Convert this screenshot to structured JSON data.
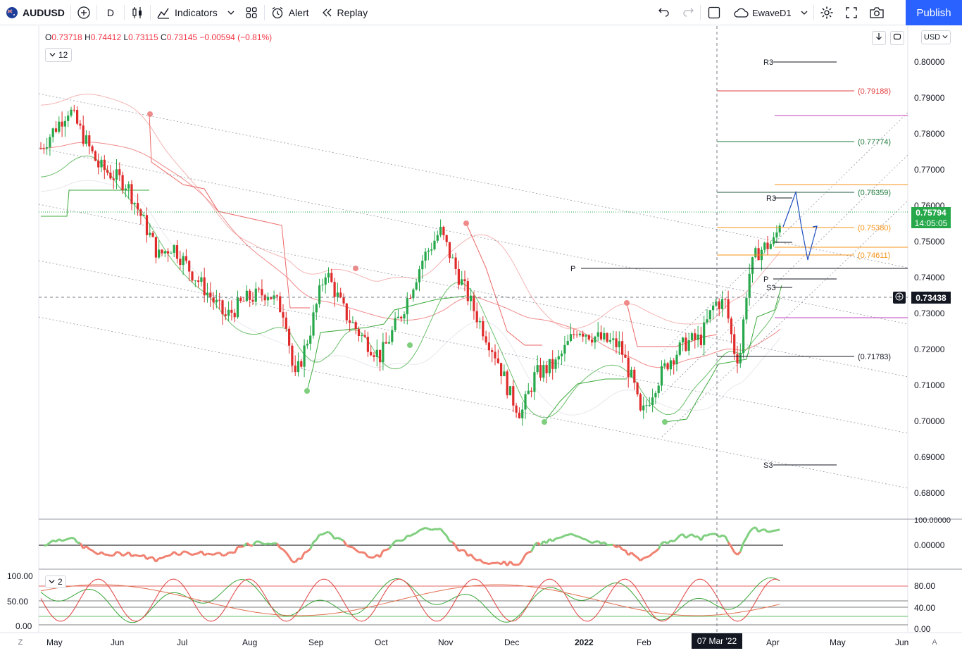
{
  "toolbar": {
    "symbol": "AUDUSD",
    "interval": "D",
    "indicators_label": "Indicators",
    "alert_label": "Alert",
    "replay_label": "Replay",
    "layout_name": "EwaveD1",
    "publish_label": "Publish"
  },
  "legend": {
    "o_key": "O",
    "o_val": "0.73718",
    "h_key": "H",
    "h_val": "0.74412",
    "l_key": "L",
    "l_val": "0.73115",
    "c_key": "C",
    "c_val": "0.73145",
    "change": "−0.00594 (−0.81%)",
    "hidden_count": "12",
    "pane3_count": "2"
  },
  "currency": "USD",
  "price_axis": {
    "ticks": [
      "0.80000",
      "0.79000",
      "0.78000",
      "0.77000",
      "0.76000",
      "0.75000",
      "0.74000",
      "0.73000",
      "0.72000",
      "0.71000",
      "0.70000",
      "0.69000",
      "0.68000"
    ],
    "last_price": "0.75794",
    "countdown": "14:05:05",
    "crosshair_price": "0.73438"
  },
  "pane2_axis": {
    "ticks": [
      "100.00000",
      "0.00000"
    ]
  },
  "pane3_axis": {
    "left_ticks": [
      "100.00",
      "50.00",
      "0.00"
    ],
    "right_ticks": [
      "80.00",
      "40.00",
      "0.00"
    ]
  },
  "time_axis": {
    "labels": [
      "May",
      "Jun",
      "Jul",
      "Aug",
      "Sep",
      "Oct",
      "Nov",
      "Dec",
      "2022",
      "Feb",
      "Apr",
      "May",
      "Jun"
    ],
    "crosshair_date": "07 Mar '22",
    "left_button": "Z",
    "right_button": "A"
  },
  "levels": {
    "fib": [
      "(0.79188)",
      "(0.77774)",
      "(0.76359)",
      "(0.75380)",
      "(0.74611)",
      "(0.71783)"
    ],
    "pivots": [
      "R3",
      "R3",
      "P",
      "P",
      "S3",
      "S3"
    ]
  },
  "colors": {
    "up": "#089981",
    "up_candle": "#26a84a",
    "down": "#f23645",
    "accent": "#2962ff",
    "orange": "#f7931a"
  },
  "chart_data": {
    "type": "candlestick",
    "symbol": "AUDUSD",
    "interval": "D",
    "ylim": [
      0.675,
      0.807
    ],
    "x": [
      "May 2021",
      "Jun",
      "Jul",
      "Aug",
      "Sep",
      "Oct",
      "Nov",
      "Dec",
      "Jan 2022",
      "Feb",
      "Mar",
      "Apr"
    ],
    "close_approx": [
      0.775,
      0.772,
      0.75,
      0.735,
      0.724,
      0.74,
      0.752,
      0.712,
      0.713,
      0.703,
      0.735,
      0.758
    ],
    "last_close": 0.75794,
    "projection_path": [
      0.7575,
      0.7635,
      0.7535,
      0.7445,
      0.7535
    ]
  }
}
